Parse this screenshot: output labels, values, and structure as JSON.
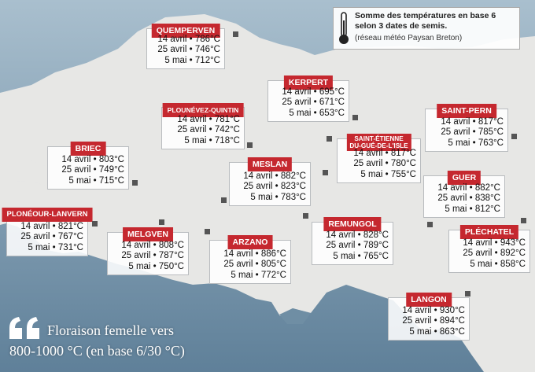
{
  "legend": {
    "line1": "Somme des températures en base 6",
    "line2": "selon 3 dates de semis.",
    "line3": "(réseau météo Paysan Breton)",
    "icon": "thermometer-icon"
  },
  "caption": {
    "line1": "Floraison femelle vers",
    "line2": "800-1000 °C (en base 6/30 °C)",
    "icon": "quote-icon"
  },
  "colors": {
    "header": "#c5282f",
    "sea": "#6e8ea5",
    "land": "#e6e6e4"
  },
  "stations": [
    {
      "name": "QUEMPERVEN",
      "rows": [
        "14 avril • 786°C",
        "25 avril • 746°C",
        "5 mai • 712°C"
      ]
    },
    {
      "name": "KERPERT",
      "rows": [
        "14 avril • 695°C",
        "25 avril • 671°C",
        "5 mai • 653°C"
      ]
    },
    {
      "name": "PLOUNÉVEZ-QUINTIN",
      "rows": [
        "14 avril • 781°C",
        "25 avril • 742°C",
        "5 mai • 718°C"
      ]
    },
    {
      "name": "SAINT-PERN",
      "rows": [
        "14 avril • 817°C",
        "25 avril • 785°C",
        "5 mai • 763°C"
      ]
    },
    {
      "name": "BRIEC",
      "rows": [
        "14 avril • 803°C",
        "25 avril • 749°C",
        "5 mai • 715°C"
      ]
    },
    {
      "name": "SAINT-ÉTIENNE",
      "name2": "DU-GUÉ-DE-L'ISLE",
      "rows": [
        "14 avril • 817°C",
        "25 avril • 780°C",
        "5 mai • 755°C"
      ]
    },
    {
      "name": "MESLAN",
      "rows": [
        "14 avril • 882°C",
        "25 avril • 823°C",
        "5 mai • 783°C"
      ]
    },
    {
      "name": "GUER",
      "rows": [
        "14 avril • 882°C",
        "25 avril • 838°C",
        "5 mai • 812°C"
      ]
    },
    {
      "name": "PLONÉOUR-LANVERN",
      "rows": [
        "14 avril • 821°C",
        "25 avril • 767°C",
        "5 mai • 731°C"
      ]
    },
    {
      "name": "MELGVEN",
      "rows": [
        "14 avril • 808°C",
        "25 avril • 787°C",
        "5 mai • 750°C"
      ]
    },
    {
      "name": "ARZANO",
      "rows": [
        "14 avril • 886°C",
        "25 avril • 805°C",
        "5 mai • 772°C"
      ]
    },
    {
      "name": "REMUNGOL",
      "rows": [
        "14 avril • 828°C",
        "25 avril • 789°C",
        "5 mai • 765°C"
      ]
    },
    {
      "name": "PLÉCHATEL",
      "rows": [
        "14 avril • 943°C",
        "25 avril • 892°C",
        "5 mai • 858°C"
      ]
    },
    {
      "name": "LANGON",
      "rows": [
        "14 avril • 930°C",
        "25 avril • 894°C",
        "5 mai • 863°C"
      ]
    }
  ]
}
